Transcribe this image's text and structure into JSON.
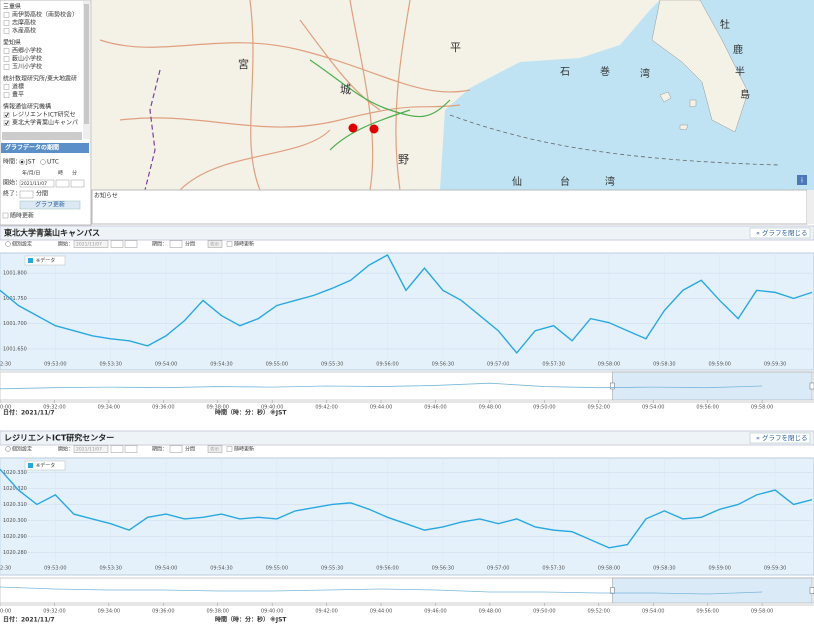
{
  "sidebar": {
    "groups": [
      {
        "title": "三重県",
        "items": [
          {
            "label": "南伊勢高校（南勢校舎）",
            "checked": false
          },
          {
            "label": "志摩高校",
            "checked": false
          },
          {
            "label": "水産高校",
            "checked": false
          }
        ]
      },
      {
        "title": "愛知県",
        "items": [
          {
            "label": "西郷小学校",
            "checked": false
          },
          {
            "label": "薮山小学校",
            "checked": false
          },
          {
            "label": "玉川小学校",
            "checked": false
          }
        ]
      },
      {
        "title": "統計数理研究所/東大地震研",
        "items": [
          {
            "label": "道標",
            "checked": false
          },
          {
            "label": "豊平",
            "checked": false
          }
        ]
      },
      {
        "title": "情報通信研究機構",
        "items": [
          {
            "label": "レジリエントICT研究セ",
            "checked": true
          },
          {
            "label": "東北大学青葉山キャンパ",
            "checked": true
          }
        ]
      }
    ],
    "period_button": "グラフデータの期間",
    "time_label": "時間：",
    "tz": [
      "JST",
      "UTC"
    ],
    "date_headers": [
      "年/月/日",
      "時",
      "分"
    ],
    "start_label": "開始：",
    "start_date": "2021/11/07",
    "end_label": "終了：",
    "duration_unit": "分間",
    "update_button": "グラフ更新",
    "auto_update": "随時更新"
  },
  "map": {
    "labels": [
      "宮",
      "城",
      "平",
      "野",
      "石",
      "巻",
      "湾",
      "牡",
      "鹿",
      "半",
      "島",
      "仙",
      "台",
      "湾"
    ]
  },
  "notice": {
    "title": "お知らせ"
  },
  "panels": [
    {
      "title": "東北大学青葉山キャンパス",
      "close": "« グラフを閉じる",
      "controls": {
        "individual": "個別設定",
        "start": "開始：",
        "date": "2021/11/07",
        "period": "期間：",
        "unit": "分間",
        "show": "表示",
        "auto": "随時更新"
      },
      "date": "日付：2021/11/7",
      "axis_label": "時間（時：分：秒）",
      "tz": "※JST"
    },
    {
      "title": "レジリエントICT研究センター",
      "close": "« グラフを閉じる",
      "controls": {
        "individual": "個別設定",
        "start": "開始：",
        "date": "2021/11/07",
        "period": "期間：",
        "unit": "分間",
        "show": "表示",
        "auto": "随時更新"
      },
      "date": "日付：2021/11/7",
      "axis_label": "時間（時：分：秒）",
      "tz": "※JST"
    }
  ],
  "chart_data": [
    {
      "type": "line",
      "x": [
        "09:52:30",
        "09:52:40",
        "09:52:50",
        "09:53:00",
        "09:53:10",
        "09:53:20",
        "09:53:30",
        "09:53:40",
        "09:53:50",
        "09:54:00",
        "09:54:10",
        "09:54:20",
        "09:54:30",
        "09:54:40",
        "09:54:50",
        "09:55:00",
        "09:55:10",
        "09:55:20",
        "09:55:30",
        "09:55:40",
        "09:55:50",
        "09:56:00",
        "09:56:10",
        "09:56:20",
        "09:56:30",
        "09:56:40",
        "09:56:50",
        "09:57:00",
        "09:57:10",
        "09:57:20",
        "09:57:30",
        "09:57:40",
        "09:57:50",
        "09:58:00",
        "09:58:10",
        "09:58:20",
        "09:58:30",
        "09:58:40",
        "09:58:50",
        "09:59:00",
        "09:59:10",
        "09:59:20",
        "09:59:30",
        "09:59:40",
        "09:59:50"
      ],
      "series": [
        {
          "name": "※データ",
          "color": "#29a8e0",
          "values": [
            1001.766,
            1001.736,
            1001.716,
            1001.696,
            1001.686,
            1001.676,
            1001.67,
            1001.666,
            1001.656,
            1001.676,
            1001.706,
            1001.746,
            1001.716,
            1001.696,
            1001.71,
            1001.736,
            1001.746,
            1001.756,
            1001.77,
            1001.786,
            1001.816,
            1001.836,
            1001.766,
            1001.81,
            1001.766,
            1001.746,
            1001.716,
            1001.686,
            1001.642,
            1001.686,
            1001.696,
            1001.666,
            1001.71,
            1001.702,
            1001.686,
            1001.67,
            1001.726,
            1001.766,
            1001.786,
            1001.746,
            1001.71,
            1001.766,
            1001.762,
            1001.75,
            1001.762
          ]
        }
      ],
      "xlim": [
        "09:52:30",
        "09:59:50"
      ],
      "ylim": [
        1001.628,
        1001.84
      ],
      "yticks": [
        {
          "value": 1001.65,
          "label": "1001.650"
        },
        {
          "value": 1001.7,
          "label": "1001.700"
        },
        {
          "value": 1001.75,
          "label": "1001.750"
        },
        {
          "value": 1001.8,
          "label": "1001.800"
        }
      ],
      "xticks": [
        "09:52:30",
        "09:53:00",
        "09:53:30",
        "09:54:00",
        "09:54:30",
        "09:55:00",
        "09:55:30",
        "09:56:00",
        "09:56:30",
        "09:57:00",
        "09:57:30",
        "09:58:00",
        "09:58:30",
        "09:59:00",
        "09:59:30"
      ],
      "grid": true,
      "navigator": {
        "x": [
          "09:30:00",
          "09:32:00",
          "09:34:00",
          "09:36:00",
          "09:38:00",
          "09:40:00",
          "09:42:00",
          "09:44:00",
          "09:46:00",
          "09:48:00",
          "09:50:00",
          "09:52:00",
          "09:54:00",
          "09:56:00",
          "09:58:00"
        ],
        "values": [
          1001.7,
          1001.72,
          1001.73,
          1001.72,
          1001.74,
          1001.73,
          1001.75,
          1001.74,
          1001.76,
          1001.8,
          1001.74,
          1001.72,
          1001.73,
          1001.72,
          1001.75
        ],
        "xlim": [
          "09:30:00",
          "09:59:50"
        ],
        "ylim": [
          1001.5,
          1002.0
        ],
        "xticks": [
          "09:30:00",
          "09:32:00",
          "09:34:00",
          "09:36:00",
          "09:38:00",
          "09:40:00",
          "09:42:00",
          "09:44:00",
          "09:46:00",
          "09:48:00",
          "09:50:00",
          "09:52:00",
          "09:54:00",
          "09:56:00",
          "09:58:00"
        ],
        "selection": [
          "09:52:30",
          "09:59:50"
        ]
      }
    },
    {
      "type": "line",
      "x": [
        "09:52:30",
        "09:52:40",
        "09:52:50",
        "09:53:00",
        "09:53:10",
        "09:53:20",
        "09:53:30",
        "09:53:40",
        "09:53:50",
        "09:54:00",
        "09:54:10",
        "09:54:20",
        "09:54:30",
        "09:54:40",
        "09:54:50",
        "09:55:00",
        "09:55:10",
        "09:55:20",
        "09:55:30",
        "09:55:40",
        "09:55:50",
        "09:56:00",
        "09:56:10",
        "09:56:20",
        "09:56:30",
        "09:56:40",
        "09:56:50",
        "09:57:00",
        "09:57:10",
        "09:57:20",
        "09:57:30",
        "09:57:40",
        "09:57:50",
        "09:58:00",
        "09:58:10",
        "09:58:20",
        "09:58:30",
        "09:58:40",
        "09:58:50",
        "09:59:00",
        "09:59:10",
        "09:59:20",
        "09:59:30",
        "09:59:40",
        "09:59:50"
      ],
      "series": [
        {
          "name": "※データ",
          "color": "#29a8e0",
          "values": [
            1020.332,
            1020.319,
            1020.31,
            1020.316,
            1020.304,
            1020.301,
            1020.298,
            1020.294,
            1020.302,
            1020.304,
            1020.301,
            1020.302,
            1020.304,
            1020.301,
            1020.302,
            1020.301,
            1020.306,
            1020.308,
            1020.31,
            1020.311,
            1020.307,
            1020.302,
            1020.298,
            1020.294,
            1020.296,
            1020.299,
            1020.301,
            1020.298,
            1020.301,
            1020.296,
            1020.294,
            1020.293,
            1020.288,
            1020.283,
            1020.285,
            1020.301,
            1020.306,
            1020.301,
            1020.302,
            1020.307,
            1020.31,
            1020.316,
            1020.319,
            1020.31,
            1020.313
          ]
        }
      ],
      "xlim": [
        "09:52:30",
        "09:59:50"
      ],
      "ylim": [
        1020.266,
        1020.339
      ],
      "yticks": [
        {
          "value": 1020.28,
          "label": "1020.280"
        },
        {
          "value": 1020.29,
          "label": "1020.290"
        },
        {
          "value": 1020.3,
          "label": "1020.300"
        },
        {
          "value": 1020.31,
          "label": "1020.310"
        },
        {
          "value": 1020.32,
          "label": "1020.320"
        },
        {
          "value": 1020.33,
          "label": "1020.330"
        }
      ],
      "xticks": [
        "09:52:30",
        "09:53:00",
        "09:53:30",
        "09:54:00",
        "09:54:30",
        "09:55:00",
        "09:55:30",
        "09:56:00",
        "09:56:30",
        "09:57:00",
        "09:57:30",
        "09:58:00",
        "09:58:30",
        "09:59:00",
        "09:59:30"
      ],
      "grid": true,
      "navigator": {
        "x": [
          "09:30:00",
          "09:32:00",
          "09:34:00",
          "09:36:00",
          "09:38:00",
          "09:40:00",
          "09:42:00",
          "09:44:00",
          "09:46:00",
          "09:48:00",
          "09:50:00",
          "09:52:00",
          "09:54:00",
          "09:56:00",
          "09:58:00"
        ],
        "values": [
          1020.36,
          1020.34,
          1020.33,
          1020.33,
          1020.32,
          1020.32,
          1020.33,
          1020.34,
          1020.33,
          1020.31,
          1020.31,
          1020.3,
          1020.3,
          1020.29,
          1020.31
        ],
        "xlim": [
          "09:30:00",
          "09:59:50"
        ],
        "ylim": [
          1020.2,
          1020.45
        ],
        "xticks": [
          "09:30:00",
          "09:32:00",
          "09:34:00",
          "09:36:00",
          "09:38:00",
          "09:40:00",
          "09:42:00",
          "09:44:00",
          "09:46:00",
          "09:48:00",
          "09:50:00",
          "09:52:00",
          "09:54:00",
          "09:56:00",
          "09:58:00"
        ],
        "selection": [
          "09:52:30",
          "09:59:50"
        ]
      }
    }
  ]
}
